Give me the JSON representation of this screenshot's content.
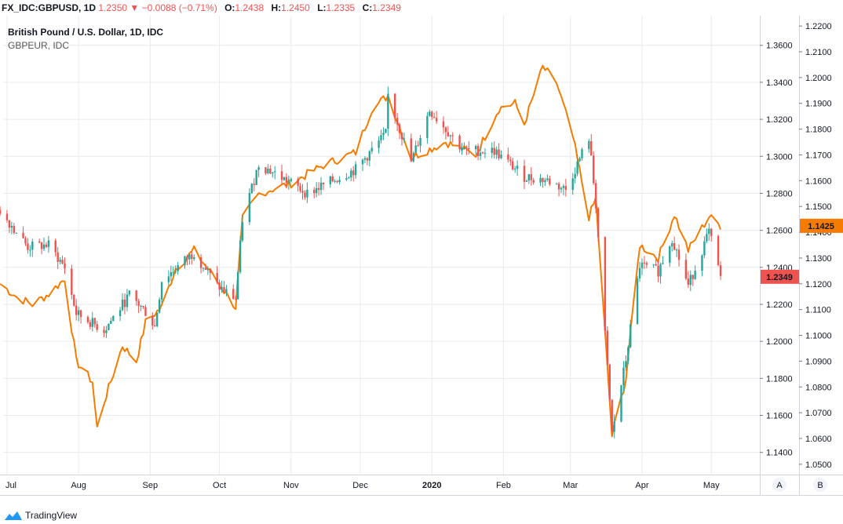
{
  "header": {
    "symbol": "FX_IDC:GBPUSD, 1D",
    "last_price": "1.2350",
    "change": "−0.0088 (−0.71%)",
    "open_label": "O:",
    "open_value": "1.2438",
    "high_label": "H:",
    "high_value": "1.2450",
    "low_label": "L:",
    "low_value": "1.2335",
    "close_label": "C:",
    "close_value": "1.2349",
    "down_arrow": "▼"
  },
  "legend": {
    "main_series": "British Pound / U.S. Dollar, 1D, IDC",
    "compare_series": "GBPEUR, IDC"
  },
  "footer": {
    "brand": "TradingView"
  },
  "axis_buttons": {
    "a": "A",
    "b": "B"
  },
  "colors": {
    "up": "#26a69a",
    "down": "#ef5350",
    "compare_line": "#f57c00",
    "grid": "#e6eaee"
  },
  "chart_data": {
    "type": "candlestick+line",
    "x_labels": [
      "Jul",
      "Aug",
      "Sep",
      "Oct",
      "Nov",
      "Dec",
      "2020",
      "Feb",
      "Mar",
      "Apr",
      "May"
    ],
    "left_price_axis": {
      "ticks": [
        "1.3600",
        "1.3400",
        "1.3200",
        "1.3000",
        "1.2800",
        "1.2600",
        "1.2400",
        "1.2200",
        "1.2000",
        "1.1800",
        "1.1600",
        "1.1400"
      ],
      "range": [
        1.128,
        1.376
      ]
    },
    "right_price_axis": {
      "ticks": [
        "1.2200",
        "1.2100",
        "1.2000",
        "1.1900",
        "1.1800",
        "1.1700",
        "1.1600",
        "1.1500",
        "1.1400",
        "1.1300",
        "1.1200",
        "1.1100",
        "1.1000",
        "1.0900",
        "1.0800",
        "1.0700",
        "1.0600",
        "1.0500"
      ],
      "range": [
        1.046,
        1.224
      ]
    },
    "price_labels": {
      "gbpusd": "1.2349",
      "gbpeur": "1.1425"
    },
    "series": [
      {
        "name": "British Pound / U.S. Dollar, 1D, IDC",
        "kind": "candlestick",
        "anchors": [
          [
            "2019-06-28",
            1.271
          ],
          [
            "2019-07-10",
            1.251
          ],
          [
            "2019-07-19",
            1.252
          ],
          [
            "2019-07-26",
            1.24
          ],
          [
            "2019-07-31",
            1.215
          ],
          [
            "2019-08-12",
            1.206
          ],
          [
            "2019-08-23",
            1.225
          ],
          [
            "2019-08-30",
            1.216
          ],
          [
            "2019-09-03",
            1.208
          ],
          [
            "2019-09-06",
            1.233
          ],
          [
            "2019-09-20",
            1.248
          ],
          [
            "2019-09-30",
            1.23
          ],
          [
            "2019-10-08",
            1.223
          ],
          [
            "2019-10-11",
            1.266
          ],
          [
            "2019-10-18",
            1.296
          ],
          [
            "2019-11-08",
            1.28
          ],
          [
            "2019-11-29",
            1.293
          ],
          [
            "2019-12-12",
            1.312
          ],
          [
            "2019-12-13",
            1.333
          ],
          [
            "2019-12-23",
            1.297
          ],
          [
            "2019-12-31",
            1.325
          ],
          [
            "2020-01-15",
            1.303
          ],
          [
            "2020-01-28",
            1.303
          ],
          [
            "2020-02-10",
            1.289
          ],
          [
            "2020-02-20",
            1.287
          ],
          [
            "2020-02-28",
            1.282
          ],
          [
            "2020-03-09",
            1.31
          ],
          [
            "2020-03-12",
            1.274
          ],
          [
            "2020-03-19",
            1.15
          ],
          [
            "2020-03-25",
            1.19
          ],
          [
            "2020-03-31",
            1.241
          ],
          [
            "2020-04-08",
            1.238
          ],
          [
            "2020-04-14",
            1.256
          ],
          [
            "2020-04-21",
            1.23
          ],
          [
            "2020-04-30",
            1.259
          ],
          [
            "2020-05-05",
            1.2349
          ]
        ]
      },
      {
        "name": "GBPEUR, IDC",
        "kind": "line",
        "anchors": [
          [
            "2019-06-28",
            1.12
          ],
          [
            "2019-07-05",
            1.115
          ],
          [
            "2019-07-12",
            1.112
          ],
          [
            "2019-07-19",
            1.116
          ],
          [
            "2019-07-26",
            1.122
          ],
          [
            "2019-07-31",
            1.09
          ],
          [
            "2019-08-07",
            1.082
          ],
          [
            "2019-08-09",
            1.064
          ],
          [
            "2019-08-12",
            1.074
          ],
          [
            "2019-08-20",
            1.096
          ],
          [
            "2019-08-26",
            1.09
          ],
          [
            "2019-08-30",
            1.105
          ],
          [
            "2019-09-06",
            1.111
          ],
          [
            "2019-09-12",
            1.126
          ],
          [
            "2019-09-20",
            1.133
          ],
          [
            "2019-09-30",
            1.121
          ],
          [
            "2019-10-08",
            1.111
          ],
          [
            "2019-10-11",
            1.145
          ],
          [
            "2019-10-18",
            1.155
          ],
          [
            "2019-11-01",
            1.159
          ],
          [
            "2019-11-15",
            1.166
          ],
          [
            "2019-11-29",
            1.171
          ],
          [
            "2019-12-06",
            1.188
          ],
          [
            "2019-12-13",
            1.193
          ],
          [
            "2019-12-23",
            1.169
          ],
          [
            "2020-01-07",
            1.175
          ],
          [
            "2020-01-20",
            1.17
          ],
          [
            "2020-01-30",
            1.188
          ],
          [
            "2020-02-06",
            1.19
          ],
          [
            "2020-02-10",
            1.182
          ],
          [
            "2020-02-18",
            1.204
          ],
          [
            "2020-02-24",
            1.198
          ],
          [
            "2020-03-02",
            1.177
          ],
          [
            "2020-03-09",
            1.146
          ],
          [
            "2020-03-12",
            1.153
          ],
          [
            "2020-03-19",
            1.061
          ],
          [
            "2020-03-25",
            1.083
          ],
          [
            "2020-03-31",
            1.135
          ],
          [
            "2020-04-08",
            1.13
          ],
          [
            "2020-04-15",
            1.147
          ],
          [
            "2020-04-21",
            1.133
          ],
          [
            "2020-04-30",
            1.146
          ],
          [
            "2020-05-05",
            1.1425
          ]
        ]
      }
    ],
    "grid": true
  }
}
